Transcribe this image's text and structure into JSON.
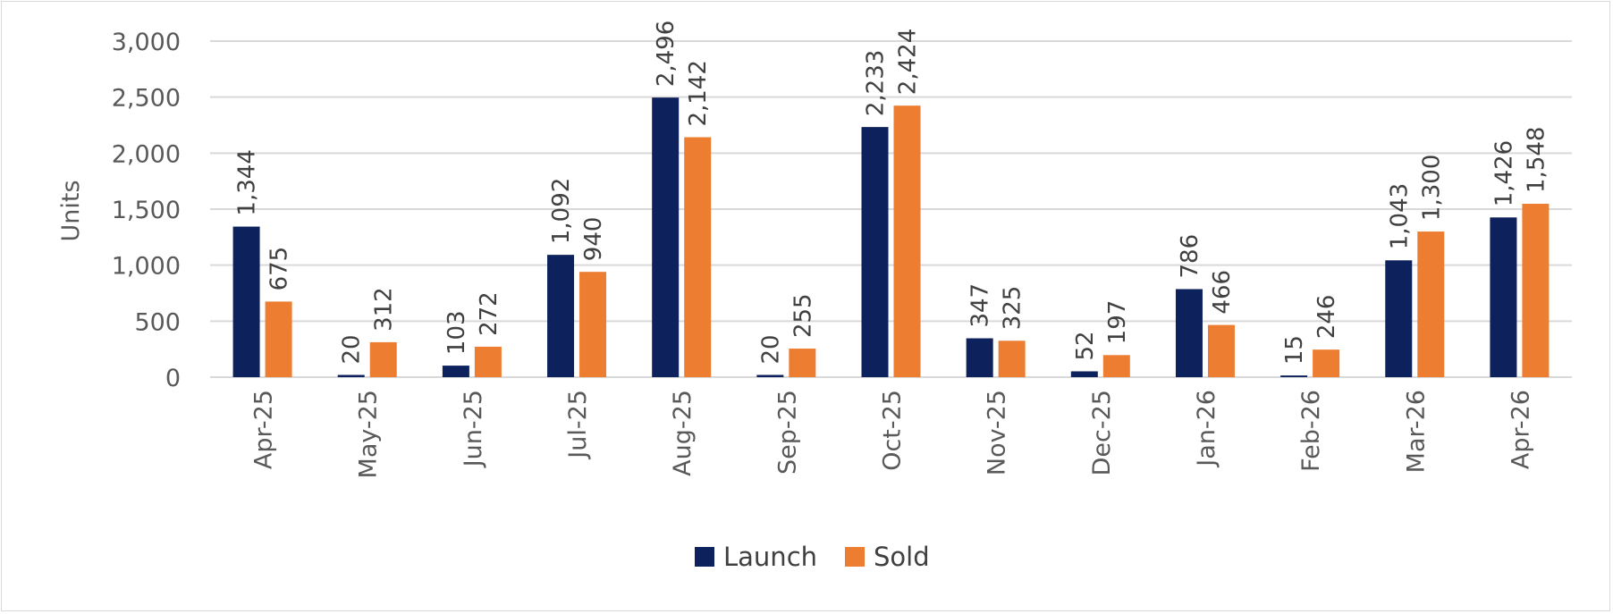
{
  "chart_data": {
    "type": "bar",
    "title": "",
    "xlabel": "",
    "ylabel": "Units",
    "categories": [
      "Apr-25",
      "May-25",
      "Jun-25",
      "Jul-25",
      "Aug-25",
      "Sep-25",
      "Oct-25",
      "Nov-25",
      "Dec-25",
      "Jan-26",
      "Feb-26",
      "Mar-26",
      "Apr-26"
    ],
    "series": [
      {
        "name": "Launch",
        "color": "#0d215c",
        "values": [
          1344,
          20,
          103,
          1092,
          2496,
          20,
          2233,
          347,
          52,
          786,
          15,
          1043,
          1426
        ]
      },
      {
        "name": "Sold",
        "color": "#ed7d31",
        "values": [
          675,
          312,
          272,
          940,
          2142,
          255,
          2424,
          325,
          197,
          466,
          246,
          1300,
          1548
        ]
      }
    ],
    "ylim": [
      0,
      3000
    ],
    "yticks": [
      0,
      500,
      1000,
      1500,
      2000,
      2500,
      3000
    ],
    "grid": true,
    "legend_position": "bottom",
    "data_labels": true
  }
}
